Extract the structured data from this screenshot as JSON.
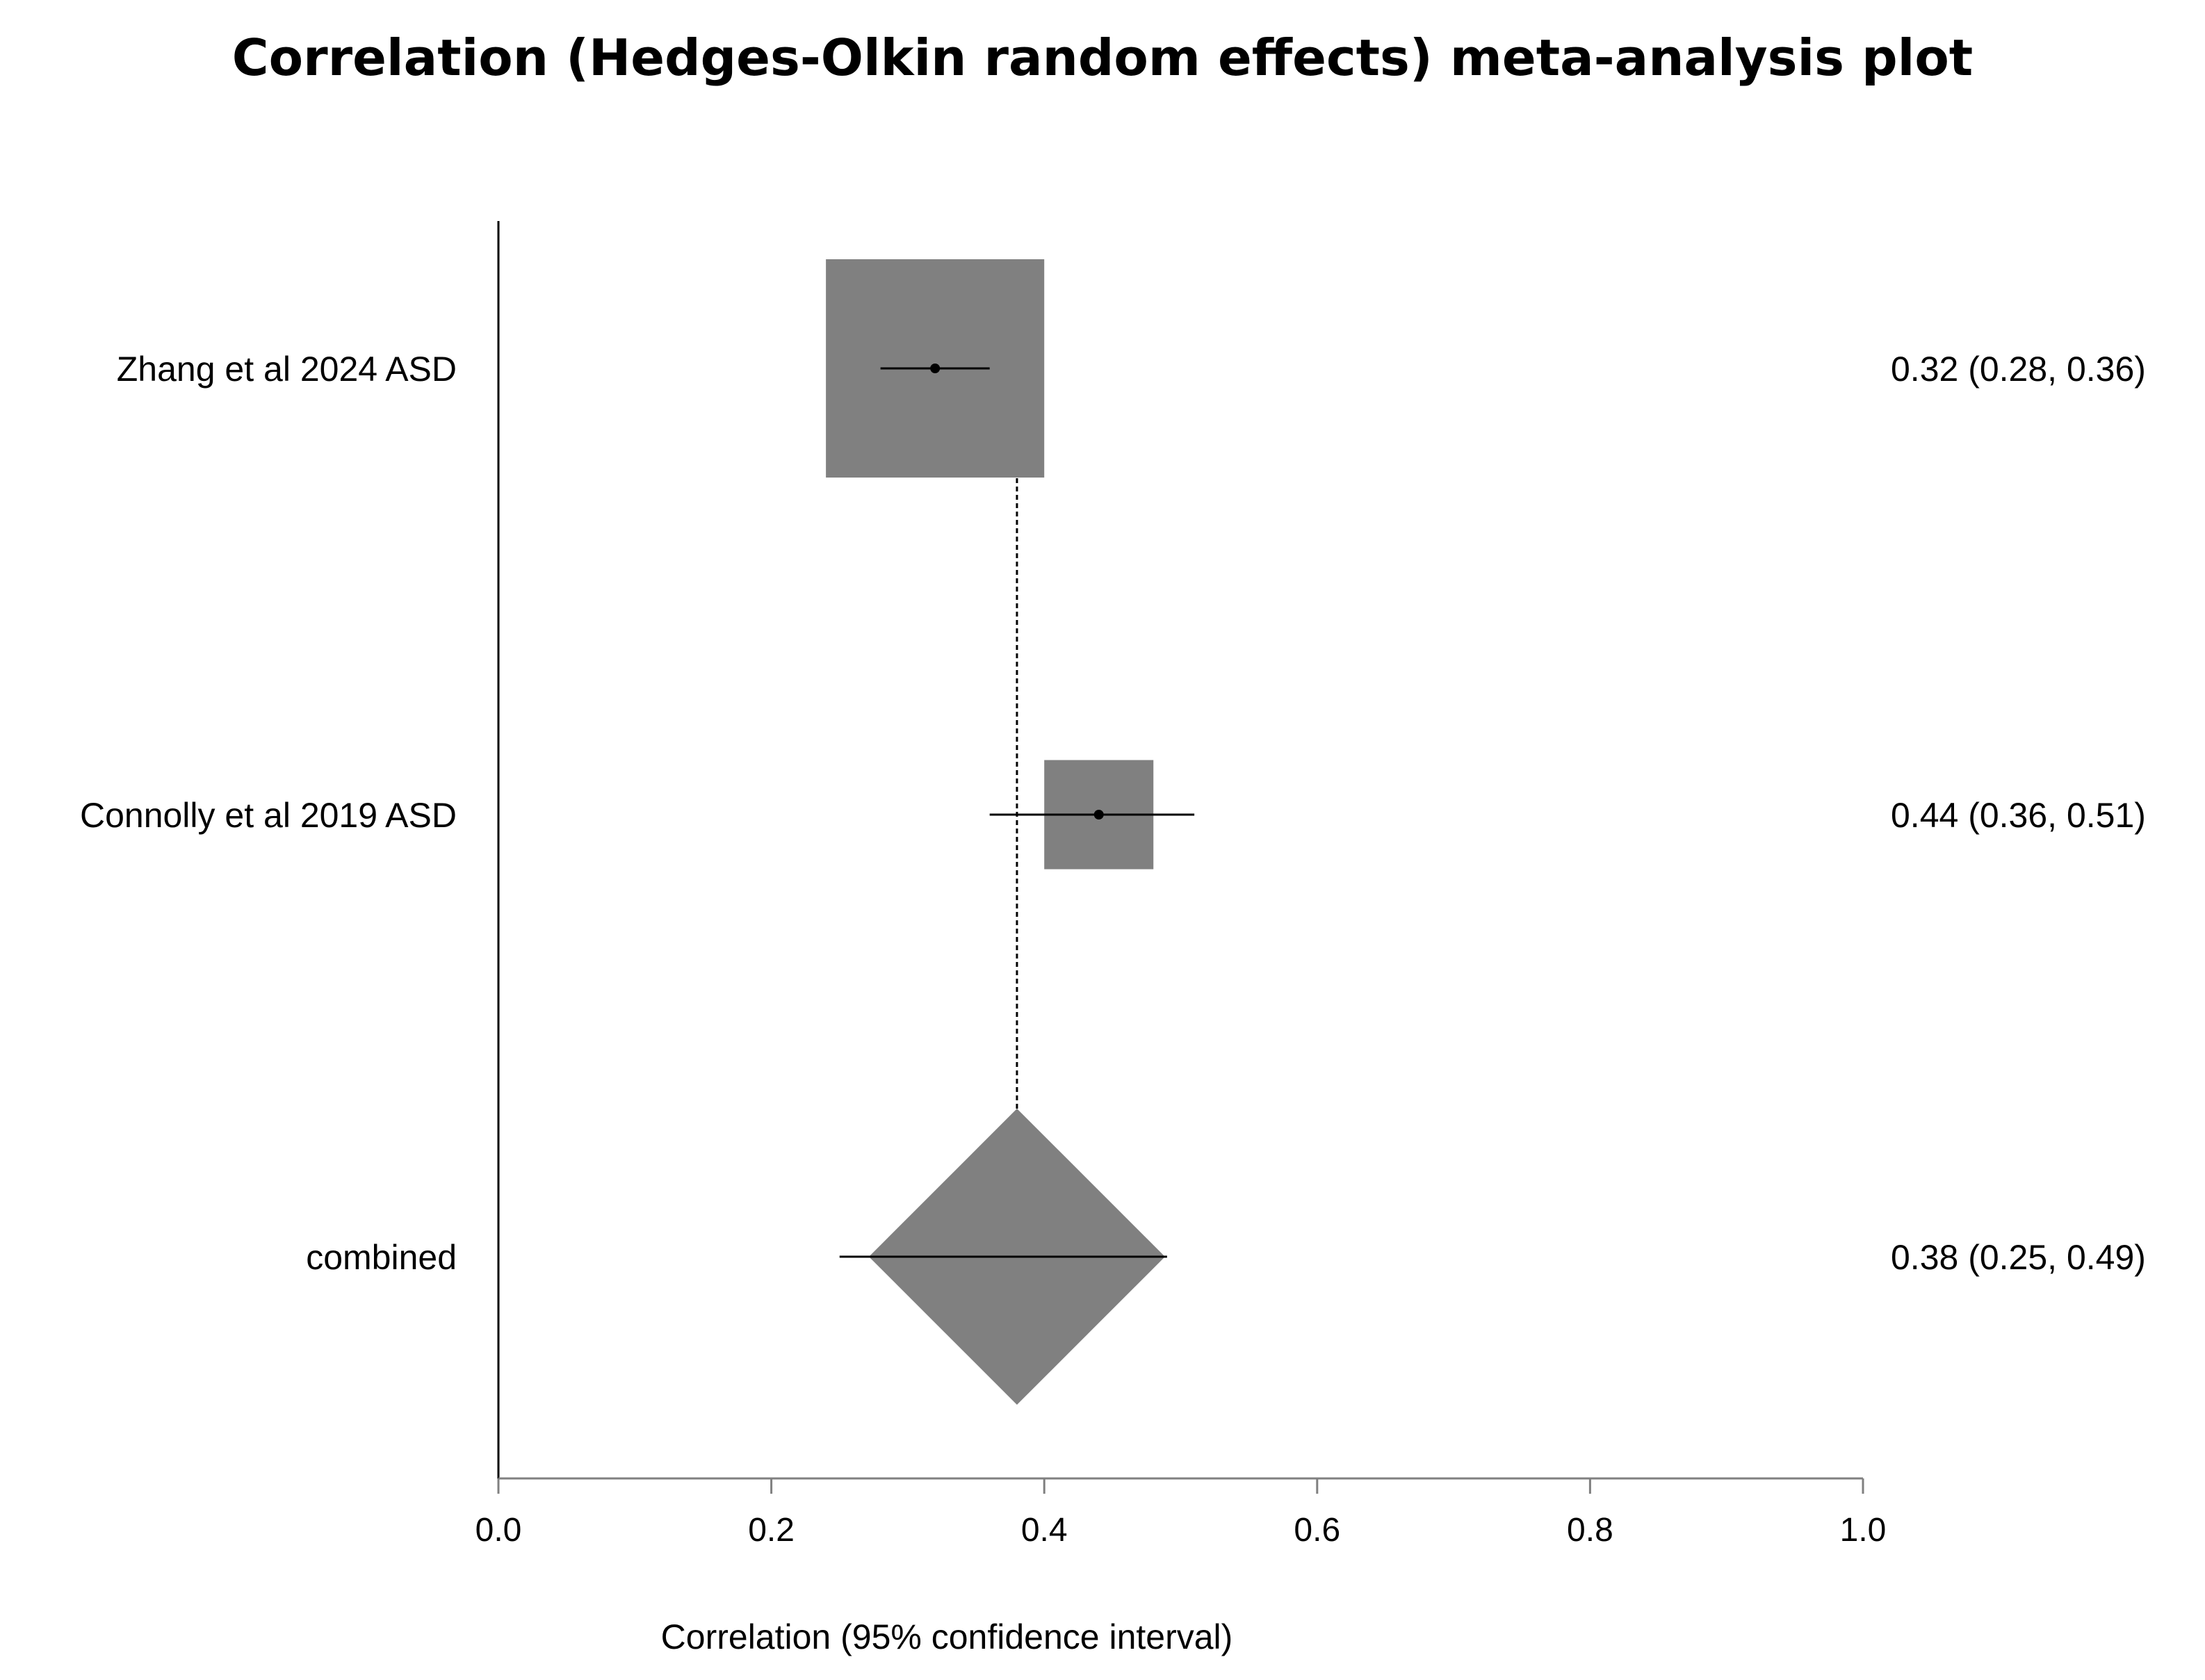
{
  "chart_data": {
    "type": "forest",
    "title": "Correlation (Hedges-Olkin random effects) meta-analysis plot",
    "xlabel": "Correlation (95% confidence interval)",
    "xlim": [
      0.0,
      1.0
    ],
    "xticks": [
      "0.0",
      "0.2",
      "0.4",
      "0.6",
      "0.8",
      "1.0"
    ],
    "xtick_values": [
      0.0,
      0.2,
      0.4,
      0.6,
      0.8,
      1.0
    ],
    "studies": [
      {
        "name": "Zhang et al 2024 ASD",
        "estimate": 0.32,
        "ci_low": 0.28,
        "ci_high": 0.36,
        "weight_box_low": 0.24,
        "weight_box_high": 0.4,
        "summary_text": "0.32 (0.28, 0.36)"
      },
      {
        "name": "Connolly et al 2019 ASD",
        "estimate": 0.44,
        "ci_low": 0.36,
        "ci_high": 0.51,
        "weight_box_low": 0.4,
        "weight_box_high": 0.48,
        "summary_text": "0.44 (0.36, 0.51)"
      }
    ],
    "combined": {
      "name": "combined",
      "estimate": 0.38,
      "ci_low": 0.25,
      "ci_high": 0.49,
      "summary_text": "0.38 (0.25, 0.49)"
    },
    "colors": {
      "marker_fill": "#808080",
      "line": "#000000",
      "axis": "#808080"
    }
  }
}
